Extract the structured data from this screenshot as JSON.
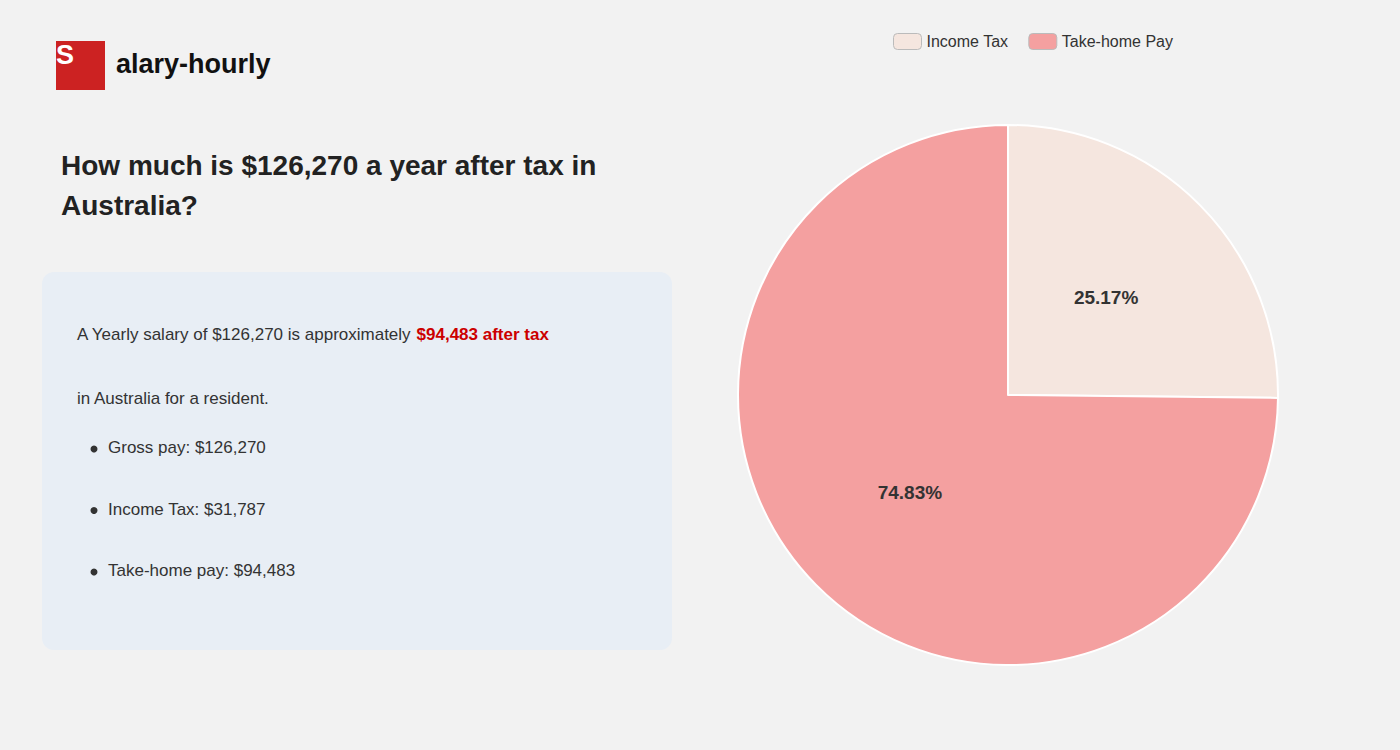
{
  "chart_data": {
    "type": "pie",
    "title": "How much is $126,270 a year after tax in\nAustralia?",
    "categories": [
      "Income Tax",
      "Take-home Pay"
    ],
    "values": [
      25.17,
      74.83
    ],
    "value_labels": [
      "25.17%",
      "74.83%"
    ],
    "colors": [
      "#f5e6df",
      "#f4a0a0"
    ],
    "data_labels": true,
    "legend": "top",
    "annotations": [
      "S",
      "alary-hourly",
      "A Yearly salary of $126,270 is approximately ",
      "$94,483 after tax",
      "in Australia for a resident.",
      "Gross pay: $126,270",
      "Income Tax: $31,787",
      "Take-home pay: $94,483"
    ]
  }
}
